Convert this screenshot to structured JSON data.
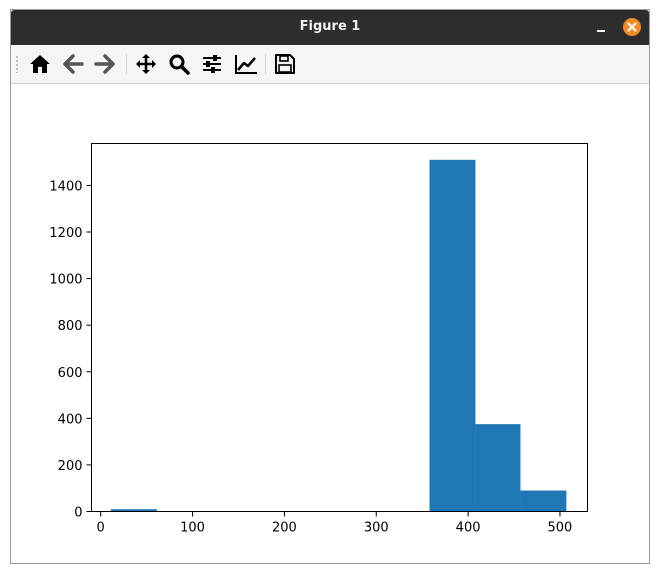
{
  "window": {
    "title": "Figure 1"
  },
  "toolbar": {
    "buttons": [
      {
        "name": "home",
        "icon": "home-icon"
      },
      {
        "name": "back",
        "icon": "arrow-left-icon"
      },
      {
        "name": "forward",
        "icon": "arrow-right-icon"
      },
      {
        "name": "pan",
        "icon": "move-icon"
      },
      {
        "name": "zoom",
        "icon": "magnifier-icon"
      },
      {
        "name": "subplots",
        "icon": "sliders-icon"
      },
      {
        "name": "customize",
        "icon": "line-chart-icon"
      },
      {
        "name": "save",
        "icon": "floppy-disk-icon"
      }
    ]
  },
  "colors": {
    "bar": "#1f77b4",
    "titlebar": "#2d2d2d",
    "close": "#f08a24"
  },
  "chart_data": {
    "type": "bar",
    "title": "",
    "xlabel": "",
    "ylabel": "",
    "xlim": [
      -10,
      530
    ],
    "ylim": [
      0,
      1580
    ],
    "xticks": [
      0,
      100,
      200,
      300,
      400,
      500
    ],
    "yticks": [
      0,
      200,
      400,
      600,
      800,
      1000,
      1200,
      1400
    ],
    "bins": [
      {
        "x0": 11,
        "x1": 61,
        "value": 10
      },
      {
        "x0": 61,
        "x1": 111,
        "value": 0
      },
      {
        "x0": 111,
        "x1": 160,
        "value": 0
      },
      {
        "x0": 160,
        "x1": 210,
        "value": 0
      },
      {
        "x0": 210,
        "x1": 259,
        "value": 0
      },
      {
        "x0": 259,
        "x1": 309,
        "value": 0
      },
      {
        "x0": 309,
        "x1": 358,
        "value": 0
      },
      {
        "x0": 358,
        "x1": 408,
        "value": 1510
      },
      {
        "x0": 408,
        "x1": 457,
        "value": 375
      },
      {
        "x0": 457,
        "x1": 507,
        "value": 90
      }
    ],
    "grid": false
  }
}
